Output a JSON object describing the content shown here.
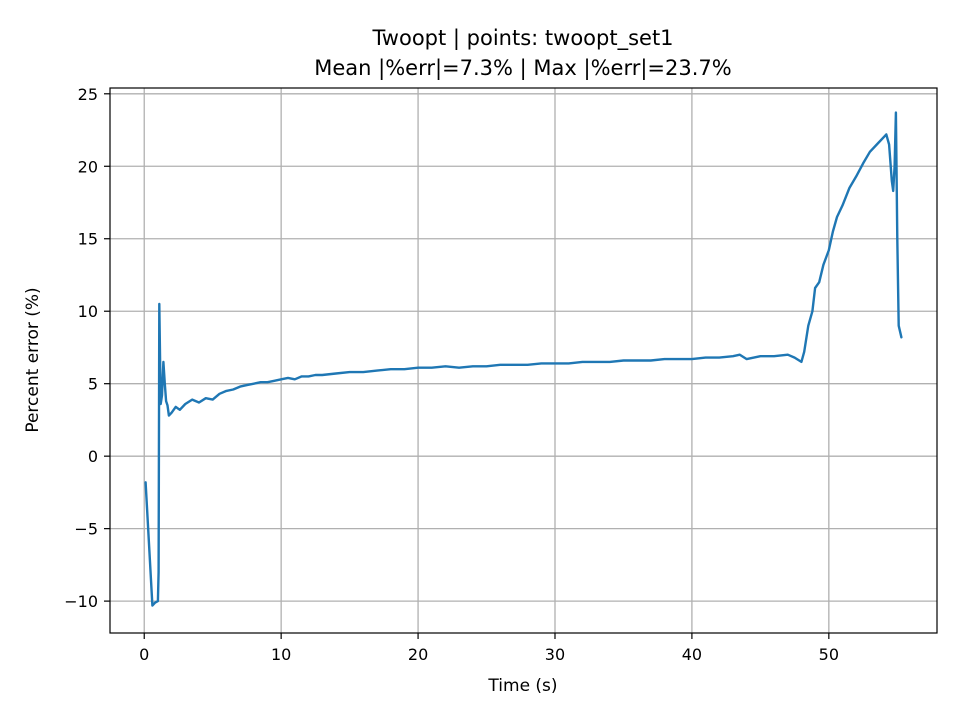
{
  "chart_data": {
    "type": "line",
    "title": "Twoopt | points: twoopt_set1",
    "subtitle": "Mean |%err|=7.3% | Max |%err|=23.7%",
    "xlabel": "Time (s)",
    "ylabel": "Percent error (%)",
    "xlim": [
      -2.5,
      57.9
    ],
    "ylim": [
      -12.2,
      25.4
    ],
    "xticks": [
      0,
      10,
      20,
      30,
      40,
      50
    ],
    "xtick_labels": [
      "0",
      "10",
      "20",
      "30",
      "40",
      "50"
    ],
    "yticks": [
      -10,
      -5,
      0,
      5,
      10,
      15,
      20,
      25
    ],
    "ytick_labels": [
      "−10",
      "−5",
      "0",
      "5",
      "10",
      "15",
      "20",
      "25"
    ],
    "grid": true,
    "legend": "none",
    "colors": {
      "line": "#1f77b4"
    },
    "series": [
      {
        "x": [
          0.1,
          0.6,
          0.8,
          1.0,
          1.05,
          1.1,
          1.2,
          1.3,
          1.4,
          1.5,
          1.6,
          1.7,
          1.8,
          2.0,
          2.3,
          2.6,
          3.0,
          3.5,
          4.0,
          4.5,
          5.0,
          5.5,
          6.0,
          6.5,
          7.0,
          7.5,
          8.0,
          8.5,
          9.0,
          9.5,
          10.0,
          10.5,
          11.0,
          11.5,
          12.0,
          12.5,
          13.0,
          14.0,
          15.0,
          16.0,
          17.0,
          18.0,
          19.0,
          20.0,
          21.0,
          22.0,
          23.0,
          24.0,
          25.0,
          26.0,
          27.0,
          28.0,
          29.0,
          30.0,
          31.0,
          32.0,
          33.0,
          34.0,
          35.0,
          36.0,
          37.0,
          38.0,
          39.0,
          40.0,
          41.0,
          42.0,
          43.0,
          43.5,
          44.0,
          45.0,
          46.0,
          47.0,
          47.5,
          48.0,
          48.2,
          48.5,
          48.8,
          49.0,
          49.3,
          49.6,
          50.0,
          50.3,
          50.6,
          51.0,
          51.5,
          52.0,
          52.5,
          53.0,
          53.5,
          54.0,
          54.2,
          54.4,
          54.6,
          54.7,
          54.8,
          54.9,
          55.0,
          55.1,
          55.3
        ],
        "y": [
          -1.8,
          -10.3,
          -10.1,
          -10.0,
          -8.0,
          10.5,
          3.6,
          4.2,
          6.5,
          5.0,
          3.8,
          3.5,
          2.8,
          3.0,
          3.4,
          3.2,
          3.6,
          3.9,
          3.7,
          4.0,
          3.9,
          4.3,
          4.5,
          4.6,
          4.8,
          4.9,
          5.0,
          5.1,
          5.1,
          5.2,
          5.3,
          5.4,
          5.3,
          5.5,
          5.5,
          5.6,
          5.6,
          5.7,
          5.8,
          5.8,
          5.9,
          6.0,
          6.0,
          6.1,
          6.1,
          6.2,
          6.1,
          6.2,
          6.2,
          6.3,
          6.3,
          6.3,
          6.4,
          6.4,
          6.4,
          6.5,
          6.5,
          6.5,
          6.6,
          6.6,
          6.6,
          6.7,
          6.7,
          6.7,
          6.8,
          6.8,
          6.9,
          7.0,
          6.7,
          6.9,
          6.9,
          7.0,
          6.8,
          6.5,
          7.2,
          9.0,
          10.0,
          11.6,
          12.0,
          13.2,
          14.2,
          15.5,
          16.5,
          17.3,
          18.5,
          19.3,
          20.2,
          21.0,
          21.5,
          22.0,
          22.2,
          21.5,
          19.0,
          18.3,
          20.0,
          23.7,
          15.0,
          9.0,
          8.2
        ]
      }
    ]
  }
}
